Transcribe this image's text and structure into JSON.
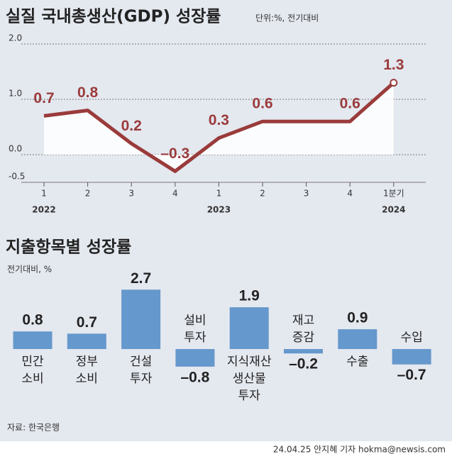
{
  "chart_data": [
    {
      "type": "line",
      "title": "실질 국내총생산(GDP) 성장률",
      "subtitle": "단위:%, 전기대비",
      "categories": [
        "1",
        "2",
        "3",
        "4",
        "1",
        "2",
        "3",
        "4",
        "1분기"
      ],
      "years": [
        "2022",
        null,
        null,
        null,
        "2023",
        null,
        null,
        null,
        "2024"
      ],
      "values": [
        0.7,
        0.8,
        0.2,
        -0.3,
        0.3,
        0.6,
        0.6,
        0.6,
        1.3
      ],
      "value_labels": [
        "0.7",
        "0.8",
        "0.2",
        "–0.3",
        "0.3",
        "0.6",
        null,
        "0.6",
        "1.3"
      ],
      "color": "#9a3b3b",
      "ylim": [
        -0.5,
        2.0
      ],
      "yticks": [
        {
          "value": -0.5,
          "label": "-0.5"
        },
        {
          "value": 0,
          "label": "0.0"
        },
        {
          "value": 1,
          "label": "1.0"
        },
        {
          "value": 2,
          "label": "2.0"
        }
      ],
      "grid": true
    },
    {
      "type": "bar",
      "title": "지출항목별 성장률",
      "subtitle": "전기대비, %",
      "categories": [
        "민간\n소비",
        "정부\n소비",
        "건설\n투자",
        "설비\n투자",
        "지식재산\n생산물\n투자",
        "재고\n증감",
        "수출",
        "수입"
      ],
      "values": [
        0.8,
        0.7,
        2.7,
        -0.8,
        1.9,
        -0.2,
        0.9,
        -0.7
      ],
      "value_labels": [
        "0.8",
        "0.7",
        "2.7",
        "–0.8",
        "1.9",
        "–0.2",
        "0.9",
        "–0.7"
      ],
      "color": "#6598cc"
    }
  ],
  "footer": {
    "source": "자료: 한국은행",
    "credit": "24.04.25 안지혜 기자 hokma@newsis.com"
  }
}
